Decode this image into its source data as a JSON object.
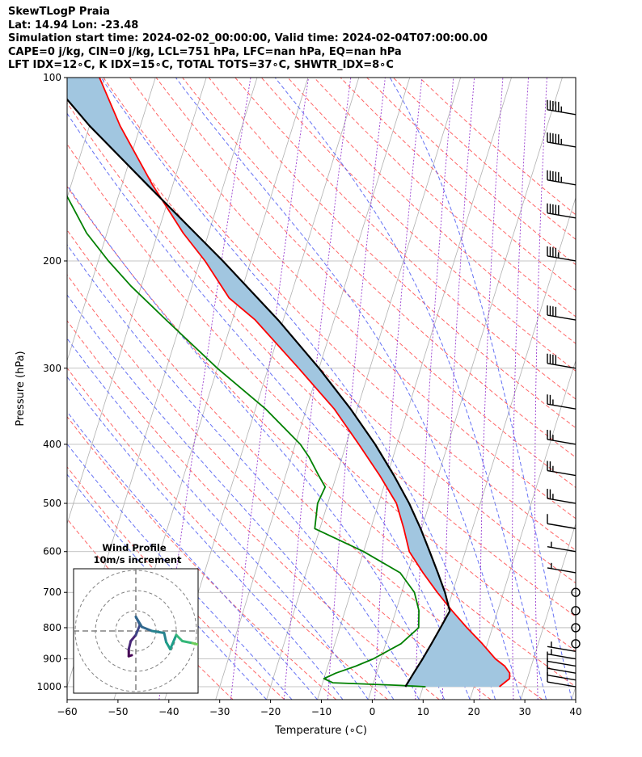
{
  "header": {
    "line1": "SkewTLogP Praia",
    "line2": "Lat: 14.94   Lon: -23.48",
    "line3": "Simulation start time: 2024-02-02_00:00:00, Valid time: 2024-02-04T07:00:00.00",
    "line4": "CAPE=0 j/kg, CIN=0 j/kg, LCL=751 hPa, LFC=nan hPa, EQ=nan hPa",
    "line5": "LFT IDX=12∘C, K IDX=15∘C, TOTAL TOTS=37∘C, SHWTR_IDX=8∘C"
  },
  "chart_data": {
    "type": "line",
    "title": "SkewTLogP Praia",
    "xlabel": "Temperature (∘C)",
    "ylabel": "Pressure (hPa)",
    "xlim": [
      -60,
      40
    ],
    "ylim": [
      1050,
      100
    ],
    "yscale": "log",
    "skew": true,
    "grid": true,
    "x_ticks": [
      "−60",
      "−50",
      "−40",
      "−30",
      "−20",
      "−10",
      "0",
      "10",
      "20",
      "30",
      "40"
    ],
    "y_ticks": [
      "100",
      "200",
      "300",
      "400",
      "500",
      "600",
      "700",
      "800",
      "900",
      "1000"
    ],
    "series": [
      {
        "color": "#ff0000",
        "p": [
          1000,
          970,
          950,
          925,
          900,
          850,
          800,
          750,
          700,
          650,
          600,
          550,
          500,
          450,
          400,
          350,
          300,
          250,
          230,
          200,
          180,
          150,
          120,
          100
        ],
        "t": [
          25.0,
          26.5,
          26.2,
          24.8,
          22.5,
          19.0,
          15.0,
          11.0,
          7.0,
          3.0,
          -1.0,
          -3.5,
          -6.5,
          -11.5,
          -17.5,
          -24.5,
          -34.0,
          -45.5,
          -52.0,
          -59.0,
          -65.0,
          -74.0,
          -84.0,
          -91.0
        ]
      },
      {
        "color": "#008000",
        "p": [
          1000,
          995,
          985,
          970,
          950,
          925,
          900,
          850,
          800,
          750,
          700,
          650,
          600,
          550,
          500,
          470,
          450,
          420,
          400,
          350,
          300,
          250,
          220,
          200,
          180,
          150,
          120,
          100
        ],
        "t": [
          10.5,
          5.5,
          -8.0,
          -10.0,
          -8.0,
          -4.5,
          -1.5,
          3.0,
          5.5,
          4.5,
          2.5,
          -1.5,
          -10.0,
          -21.0,
          -22.0,
          -21.5,
          -23.5,
          -26.5,
          -29.0,
          -38.0,
          -50.0,
          -63.0,
          -72.0,
          -78.0,
          -84.0,
          -92.0,
          -98.0,
          -101.0
        ]
      },
      {
        "color": "#000000",
        "p": [
          1000,
          950,
          900,
          850,
          800,
          751,
          700,
          650,
          600,
          550,
          500,
          450,
          400,
          350,
          300,
          250,
          200,
          150,
          120,
          100
        ],
        "t": [
          6.5,
          7.3,
          8.2,
          9.0,
          9.8,
          10.6,
          8.5,
          5.9,
          3.0,
          -0.2,
          -4.0,
          -8.7,
          -14.3,
          -21.3,
          -30.0,
          -41.0,
          -55.5,
          -75.0,
          -90.0,
          -101.0
        ]
      }
    ],
    "shaded_region": {
      "between": "temperature and parcel",
      "color": "#a1c6e0"
    },
    "wind_barbs": {
      "p": [
        1000,
        975,
        950,
        925,
        900,
        875,
        850,
        800,
        750,
        700,
        650,
        600,
        550,
        500,
        450,
        400,
        350,
        300,
        250,
        200,
        170,
        150,
        130,
        115
      ],
      "speed_kt": [
        8,
        12,
        10,
        8,
        5,
        3,
        0,
        0,
        0,
        0,
        5,
        5,
        10,
        25,
        25,
        25,
        25,
        40,
        40,
        45,
        50,
        55,
        55,
        55
      ]
    },
    "inset": {
      "title": "Wind Profile",
      "subtitle": "10m/s increment",
      "rings": [
        1,
        2,
        3
      ],
      "hodograph": [
        [
          -0.2,
          -1.2
        ],
        [
          -0.35,
          -1.25
        ],
        [
          -0.35,
          -0.9
        ],
        [
          -0.25,
          -0.5
        ],
        [
          0.0,
          -0.2
        ],
        [
          0.2,
          0.3
        ],
        [
          0.0,
          0.7
        ],
        [
          0.3,
          0.2
        ],
        [
          0.8,
          0.0
        ],
        [
          1.4,
          -0.1
        ],
        [
          1.5,
          -0.55
        ],
        [
          1.7,
          -0.9
        ],
        [
          2.0,
          -0.2
        ],
        [
          2.3,
          -0.5
        ],
        [
          2.8,
          -0.6
        ],
        [
          3.2,
          -0.7
        ]
      ]
    }
  }
}
